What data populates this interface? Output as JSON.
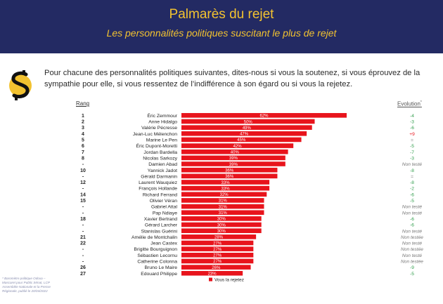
{
  "header": {
    "title": "Palmarès du rejet",
    "subtitle": "Les personnalités politiques suscitant le plus de rejet"
  },
  "question": "Pour chacune des personnalités politiques suivantes, dites-nous si vous la soutenez, si vous éprouvez de la sympathie pour elle, si vous ressentez de l’indifférence à son égard ou si vous la rejetez.",
  "columns": {
    "rank": "Rang",
    "evolution": "Evolution",
    "evolution_marker": "*"
  },
  "source_note": "* Baromètre politique Odoxa – Mascaret pour Public Sénat, LCP Assemblée Nationale et la Presse Régionale, publié le 20/04/2022",
  "colors": {
    "header_bg": "#232a63",
    "title": "#f2c230",
    "bar": "#e8141c",
    "positive": "#e8141c",
    "negative": "#2e9c4a",
    "neutral": "#777777",
    "logo_yellow": "#f2c230",
    "logo_black": "#111111"
  },
  "logo": "odoxa-logo-icon",
  "chart_data": {
    "type": "bar",
    "orientation": "horizontal",
    "legend": "Vous la rejetez",
    "legend_position": "bottom",
    "value_suffix": "%",
    "xlim": [
      0,
      100
    ],
    "rows": [
      {
        "rank": "1",
        "name": "Éric Zemmour",
        "value": 62,
        "evolution": "-4"
      },
      {
        "rank": "2",
        "name": "Anne Hidalgo",
        "value": 50,
        "evolution": "-3"
      },
      {
        "rank": "3",
        "name": "Valérie Pécresse",
        "value": 49,
        "evolution": "-6"
      },
      {
        "rank": "4",
        "name": "Jean-Luc Mélenchon",
        "value": 47,
        "evolution": "+9"
      },
      {
        "rank": "5",
        "name": "Marine Le Pen",
        "value": 45,
        "evolution": "="
      },
      {
        "rank": "6",
        "name": "Éric Dupont-Moretti",
        "value": 42,
        "evolution": "-5"
      },
      {
        "rank": "7",
        "name": "Jordan Bardella",
        "value": 40,
        "evolution": "-7"
      },
      {
        "rank": "8",
        "name": "Nicolas Sarkozy",
        "value": 39,
        "evolution": "-3"
      },
      {
        "rank": "-",
        "name": "Damien Abad",
        "value": 39,
        "evolution": "Non testé"
      },
      {
        "rank": "10",
        "name": "Yannick Jadot",
        "value": 36,
        "evolution": "-8"
      },
      {
        "rank": "-",
        "name": "Gérald Darmanin",
        "value": 36,
        "evolution": "="
      },
      {
        "rank": "12",
        "name": "Laurent Wauquiez",
        "value": 33,
        "evolution": "-8"
      },
      {
        "rank": "-",
        "name": "François Hollande",
        "value": 33,
        "evolution": "-2"
      },
      {
        "rank": "14",
        "name": "Richard Ferrand",
        "value": 32,
        "evolution": "-6"
      },
      {
        "rank": "15",
        "name": "Olivier Véran",
        "value": 31,
        "evolution": "-5"
      },
      {
        "rank": "-",
        "name": "Gabriel Attal",
        "value": 31,
        "evolution": "Non testé"
      },
      {
        "rank": "-",
        "name": "Pap Ndiaye",
        "value": 31,
        "evolution": "Non testé"
      },
      {
        "rank": "18",
        "name": "Xavier Bertrand",
        "value": 30,
        "evolution": "-6"
      },
      {
        "rank": "-",
        "name": "Gérard Larcher",
        "value": 30,
        "evolution": "-6"
      },
      {
        "rank": "-",
        "name": "Stanislas Guérini",
        "value": 30,
        "evolution": "Non testé"
      },
      {
        "rank": "21",
        "name": "Amélie de Montchalin",
        "value": 28,
        "evolution": "Non testée"
      },
      {
        "rank": "22",
        "name": "Jean Castex",
        "value": 27,
        "evolution": "Non testé"
      },
      {
        "rank": "-",
        "name": "Brigitte Bourguignon",
        "value": 27,
        "evolution": "Non testée"
      },
      {
        "rank": "-",
        "name": "Sébastien Lecornu",
        "value": 27,
        "evolution": "Non testé"
      },
      {
        "rank": "-",
        "name": "Catherine Colonna",
        "value": 27,
        "evolution": "Non testée"
      },
      {
        "rank": "26",
        "name": "Bruno Le Maire",
        "value": 26,
        "evolution": "-9"
      },
      {
        "rank": "27",
        "name": "Edouard Philippe",
        "value": 23,
        "evolution": "-5"
      }
    ]
  }
}
